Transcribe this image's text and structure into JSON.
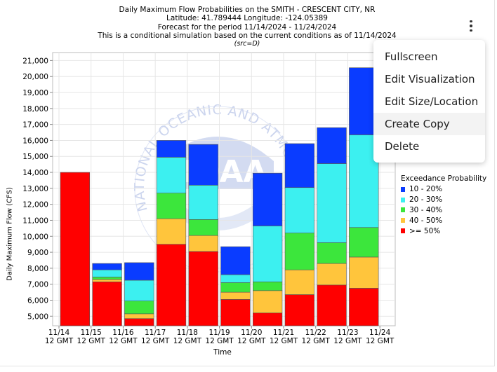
{
  "titles": {
    "line1": "Daily Maximum Flow Probabilities on the SMITH - CRESCENT CITY, NR",
    "line2": "Latitude: 41.789444 Longitude: -124.05389",
    "line3": "Forecast for the period 11/14/2024 - 11/24/2024",
    "line4": "This is a conditional simulation based on the current conditions as of 11/14/2024",
    "line5": "(src=D)"
  },
  "menu": {
    "items": [
      "Fullscreen",
      "Edit Visualization",
      "Edit Size/Location",
      "Create Copy",
      "Delete"
    ],
    "hovered": "Create Copy"
  },
  "watermark": {
    "text": "NATIONAL OCEANIC AND ATMOSPHERIC ADMINISTRATION",
    "center": "NOAA",
    "color": "#c8d2ee"
  },
  "chart_data": {
    "type": "bar",
    "stacked": true,
    "xlabel": "Time",
    "ylabel": "Daily Maximum Flow (CFS)",
    "ylim": [
      4400,
      21500
    ],
    "yticks": [
      5000,
      6000,
      7000,
      8000,
      9000,
      10000,
      11000,
      12000,
      13000,
      14000,
      15000,
      16000,
      17000,
      18000,
      19000,
      20000,
      21000
    ],
    "ytick_labels": [
      "5,000",
      "6,000",
      "7,000",
      "8,000",
      "9,000",
      "10,000",
      "11,000",
      "12,000",
      "13,000",
      "14,000",
      "15,000",
      "16,000",
      "17,000",
      "18,000",
      "19,000",
      "20,000",
      "21,000"
    ],
    "categories": [
      "11/14 12 GMT",
      "11/15 12 GMT",
      "11/16 12 GMT",
      "11/17 12 GMT",
      "11/18 12 GMT",
      "11/19 12 GMT",
      "11/20 12 GMT",
      "11/21 12 GMT",
      "11/22 12 GMT",
      "11/23 12 GMT",
      "11/24 12 GMT"
    ],
    "category_dates": [
      "11/14",
      "11/15",
      "11/16",
      "11/17",
      "11/18",
      "11/19",
      "11/20",
      "11/21",
      "11/22",
      "11/23",
      "11/24"
    ],
    "category_times": [
      "12 GMT",
      "12 GMT",
      "12 GMT",
      "12 GMT",
      "12 GMT",
      "12 GMT",
      "12 GMT",
      "12 GMT",
      "12 GMT",
      "12 GMT",
      "12 GMT"
    ],
    "bar_categories": [
      "11/15",
      "11/16",
      "11/17",
      "11/18",
      "11/19",
      "11/20",
      "11/21",
      "11/22",
      "11/23",
      "11/24"
    ],
    "legend_title": "Exceedance Probability",
    "legend_position": "right",
    "grid": true,
    "series": [
      {
        "name": ">= 50%",
        "color": "#ff0000",
        "tops": [
          14000,
          7150,
          4850,
          9500,
          9050,
          6050,
          5200,
          6350,
          6950,
          6750
        ]
      },
      {
        "name": "40 - 50%",
        "color": "#ffc53c",
        "tops": [
          14000,
          7300,
          5150,
          11100,
          10050,
          6500,
          6600,
          7900,
          8300,
          8700
        ]
      },
      {
        "name": "30 - 40%",
        "color": "#3ce63c",
        "tops": [
          14000,
          7450,
          5950,
          12700,
          11050,
          7100,
          7150,
          10200,
          9600,
          10550
        ]
      },
      {
        "name": "20 - 30%",
        "color": "#3cf0f0",
        "tops": [
          14000,
          7900,
          7250,
          14950,
          13200,
          7600,
          10650,
          13050,
          14550,
          16350
        ]
      },
      {
        "name": "10 - 20%",
        "color": "#0a3cff",
        "tops": [
          14000,
          8300,
          8350,
          16000,
          15750,
          9350,
          13950,
          15800,
          16800,
          20550
        ]
      }
    ],
    "legend_order": [
      "10 - 20%",
      "20 - 30%",
      "30 - 40%",
      "40 - 50%",
      ">= 50%"
    ]
  }
}
